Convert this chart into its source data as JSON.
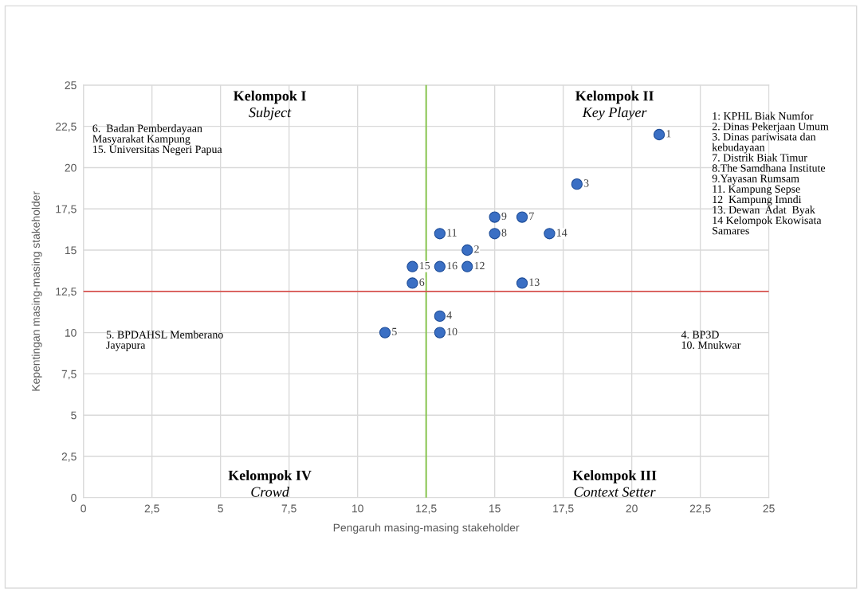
{
  "chart_data": {
    "type": "scatter",
    "xlabel": "Pengaruh masing-masing stakeholder",
    "ylabel": "Kepentingan masing-masing stakeholder",
    "x": [
      21,
      14,
      18,
      13,
      11,
      12,
      16,
      15,
      15,
      13,
      13,
      14,
      16,
      17,
      12,
      13
    ],
    "series": [
      {
        "color": "#3a6fc4",
        "values": [
          22,
          15,
          19,
          11,
          10,
          13,
          17,
          16,
          17,
          10,
          16,
          14,
          13,
          16,
          14,
          14
        ]
      }
    ],
    "marker": "circle",
    "grid": true,
    "xlim": [
      0,
      25
    ],
    "ylim": [
      0,
      25
    ],
    "xticks": [
      0,
      {
        "value": 2.5,
        "label": "2,5"
      },
      5,
      {
        "value": 7.5,
        "label": "7,5"
      },
      10,
      {
        "value": 12.5,
        "label": "12,5"
      },
      15,
      {
        "value": 17.5,
        "label": "17,5"
      },
      20,
      {
        "value": 22.5,
        "label": "22,5"
      },
      25
    ],
    "yticks": [
      0,
      {
        "value": 2.5,
        "label": "2,5"
      },
      5,
      {
        "value": 7.5,
        "label": "7,5"
      },
      10,
      {
        "value": 12.5,
        "label": "12,5"
      },
      15,
      {
        "value": 17.5,
        "label": "17,5"
      },
      20,
      {
        "value": 22.5,
        "label": "22,5"
      },
      25
    ],
    "ref_lines": [
      {
        "axis": "x",
        "value": 12.5,
        "color": "#7fc241"
      },
      {
        "axis": "y",
        "value": 12.5,
        "color": "#d9534f"
      }
    ],
    "annotations": [
      {
        "text": "1",
        "x": 21,
        "y": 22
      },
      {
        "text": "2",
        "x": 14,
        "y": 15
      },
      {
        "text": "3",
        "x": 18,
        "y": 19
      },
      {
        "text": "4",
        "x": 13,
        "y": 11
      },
      {
        "text": "5",
        "x": 11,
        "y": 10
      },
      {
        "text": "6",
        "x": 12,
        "y": 13
      },
      {
        "text": "7",
        "x": 16,
        "y": 17
      },
      {
        "text": "8",
        "x": 15,
        "y": 16
      },
      {
        "text": "9",
        "x": 15,
        "y": 17
      },
      {
        "text": "10",
        "x": 13,
        "y": 10
      },
      {
        "text": "11",
        "x": 13,
        "y": 16
      },
      {
        "text": "12",
        "x": 14,
        "y": 14
      },
      {
        "text": "13",
        "x": 16,
        "y": 13
      },
      {
        "text": "14",
        "x": 17,
        "y": 16
      },
      {
        "text": "15",
        "x": 12,
        "y": 14
      },
      {
        "text": "16",
        "x": 13,
        "y": 14
      },
      "Kelompok I",
      "Subject",
      "Kelompok II",
      "Key Player",
      "Kelompok III",
      "Context Setter",
      "Kelompok IV",
      "Crowd",
      "6.  Badan Pemberdayaan\nMasyarakat Kampung\n15. Universitas Negeri Papua",
      "1: KPHL Biak Numfor\n2. Dinas Pekerjaan Umum\n3. Dinas pariwisata dan\nkebudayaan\n7. Distrik Biak Timur\n8.The Samdhana Institute\n9.Yayasan Rumsam\n11. Kampung Sepse\n12  Kampung Imndi\n13. Dewan  Adat  Byak\n14 Kelompok Ekowisata\nSamares",
      "5. BPDAHSL Memberano\nJayapura",
      "4. BP3D\n10. Mnukwar"
    ]
  }
}
